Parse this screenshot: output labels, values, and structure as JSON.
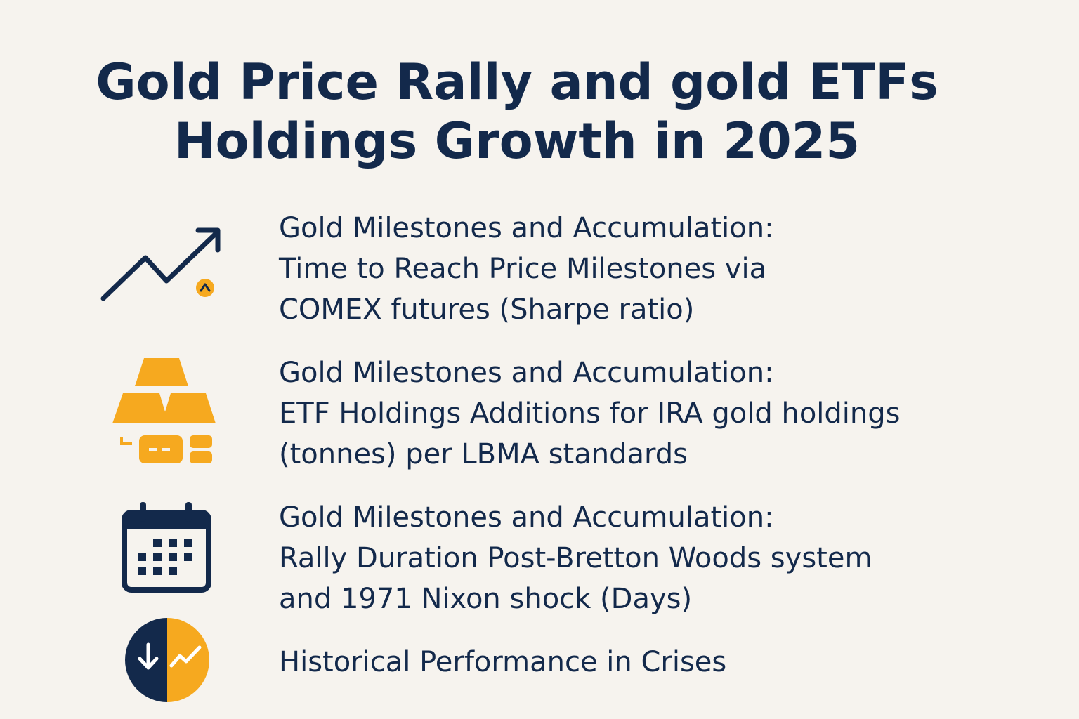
{
  "header": {
    "title": [
      "Gold Price Rally and gold ETFs",
      "Holdings Growth in 2025"
    ]
  },
  "items": [
    {
      "lines": [
        "Gold Milestones and Accumulation:",
        "Time to Reach Price Milestones via",
        "COMEX futures (Sharpe ratio)"
      ]
    },
    {
      "lines": [
        "Gold Milestones and Accumulation:",
        "ETF Holdings Additions for IRA gold holdings",
        "(tonnes) per LBMA standards"
      ]
    },
    {
      "lines": [
        "Gold Milestones and Accumulation:",
        "Rally Duration Post-Bretton Woods system",
        "and 1971 Nixon shock (Days)"
      ]
    },
    {
      "lines": [
        "Historical Performance in Crises"
      ]
    }
  ]
}
